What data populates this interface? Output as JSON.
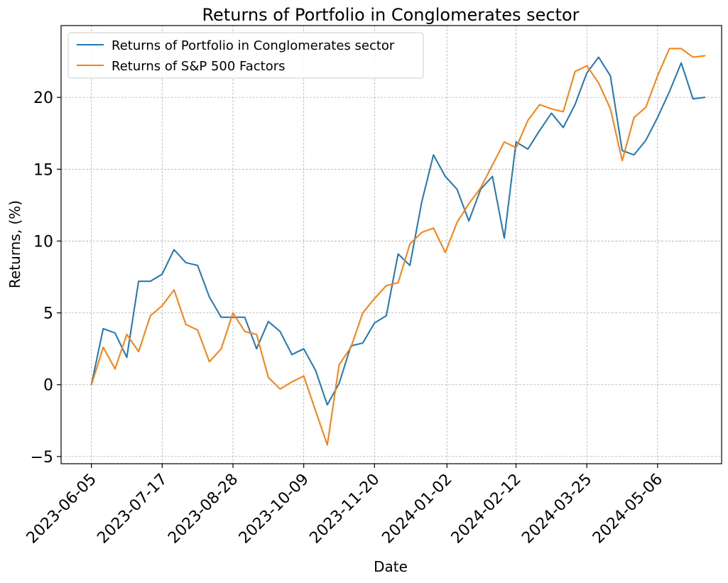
{
  "chart_data": {
    "type": "line",
    "title": "Returns of Portfolio in Conglomerates sector",
    "xlabel": "Date",
    "ylabel": "Returns, (%)",
    "xlim": [
      "2023-05-18",
      "2024-06-13"
    ],
    "ylim": [
      -5.5,
      25.0
    ],
    "grid": true,
    "legend_position": "top-left",
    "x_ticks": [
      "2023-06-05",
      "2023-07-17",
      "2023-08-28",
      "2023-10-09",
      "2023-11-20",
      "2024-01-02",
      "2024-02-12",
      "2024-03-25",
      "2024-05-06"
    ],
    "y_ticks": [
      -5,
      0,
      5,
      10,
      15,
      20
    ],
    "y_tick_labels": [
      "−5",
      "0",
      "5",
      "10",
      "15",
      "20"
    ],
    "x": [
      "2023-06-05",
      "2023-06-12",
      "2023-06-19",
      "2023-06-26",
      "2023-07-03",
      "2023-07-10",
      "2023-07-17",
      "2023-07-24",
      "2023-07-31",
      "2023-08-07",
      "2023-08-14",
      "2023-08-21",
      "2023-08-28",
      "2023-09-04",
      "2023-09-11",
      "2023-09-18",
      "2023-09-25",
      "2023-10-02",
      "2023-10-09",
      "2023-10-16",
      "2023-10-23",
      "2023-10-30",
      "2023-11-06",
      "2023-11-13",
      "2023-11-20",
      "2023-11-27",
      "2023-12-04",
      "2023-12-11",
      "2023-12-18",
      "2023-12-25",
      "2024-01-01",
      "2024-01-08",
      "2024-01-15",
      "2024-01-22",
      "2024-01-29",
      "2024-02-05",
      "2024-02-12",
      "2024-02-19",
      "2024-02-26",
      "2024-03-04",
      "2024-03-11",
      "2024-03-18",
      "2024-03-25",
      "2024-04-01",
      "2024-04-08",
      "2024-04-15",
      "2024-04-22",
      "2024-04-29",
      "2024-05-06",
      "2024-05-13",
      "2024-05-20",
      "2024-05-27",
      "2024-06-03"
    ],
    "series": [
      {
        "name": "Returns of Portfolio in Conglomerates sector",
        "color": "#1f77b4",
        "values": [
          0.0,
          3.9,
          3.6,
          1.9,
          7.2,
          7.2,
          7.7,
          9.4,
          8.5,
          8.3,
          6.1,
          4.7,
          4.7,
          4.7,
          2.5,
          4.4,
          3.7,
          2.1,
          2.5,
          1.0,
          -1.4,
          0.1,
          2.7,
          2.9,
          4.3,
          4.8,
          9.1,
          8.3,
          12.7,
          16.0,
          14.5,
          13.6,
          11.4,
          13.6,
          14.5,
          10.2,
          16.9,
          16.4,
          17.7,
          18.9,
          17.9,
          19.5,
          21.7,
          22.8,
          21.5,
          16.3,
          16.0,
          17.0,
          18.6,
          20.4,
          22.4,
          19.9,
          20.0
        ]
      },
      {
        "name": "Returns of S&P 500 Factors",
        "color": "#ff7f0e",
        "values": [
          0.0,
          2.6,
          1.1,
          3.5,
          2.3,
          4.8,
          5.5,
          6.6,
          4.2,
          3.8,
          1.6,
          2.5,
          5.0,
          3.7,
          3.5,
          0.5,
          -0.3,
          0.2,
          0.6,
          -1.8,
          -4.2,
          1.4,
          2.6,
          5.0,
          6.0,
          6.9,
          7.1,
          9.8,
          10.6,
          10.9,
          9.2,
          11.3,
          12.6,
          13.7,
          15.3,
          16.9,
          16.5,
          18.4,
          19.5,
          19.2,
          19.0,
          21.8,
          22.2,
          21.0,
          19.2,
          15.6,
          18.6,
          19.3,
          21.5,
          23.4,
          23.4,
          22.8,
          22.9
        ]
      }
    ]
  }
}
